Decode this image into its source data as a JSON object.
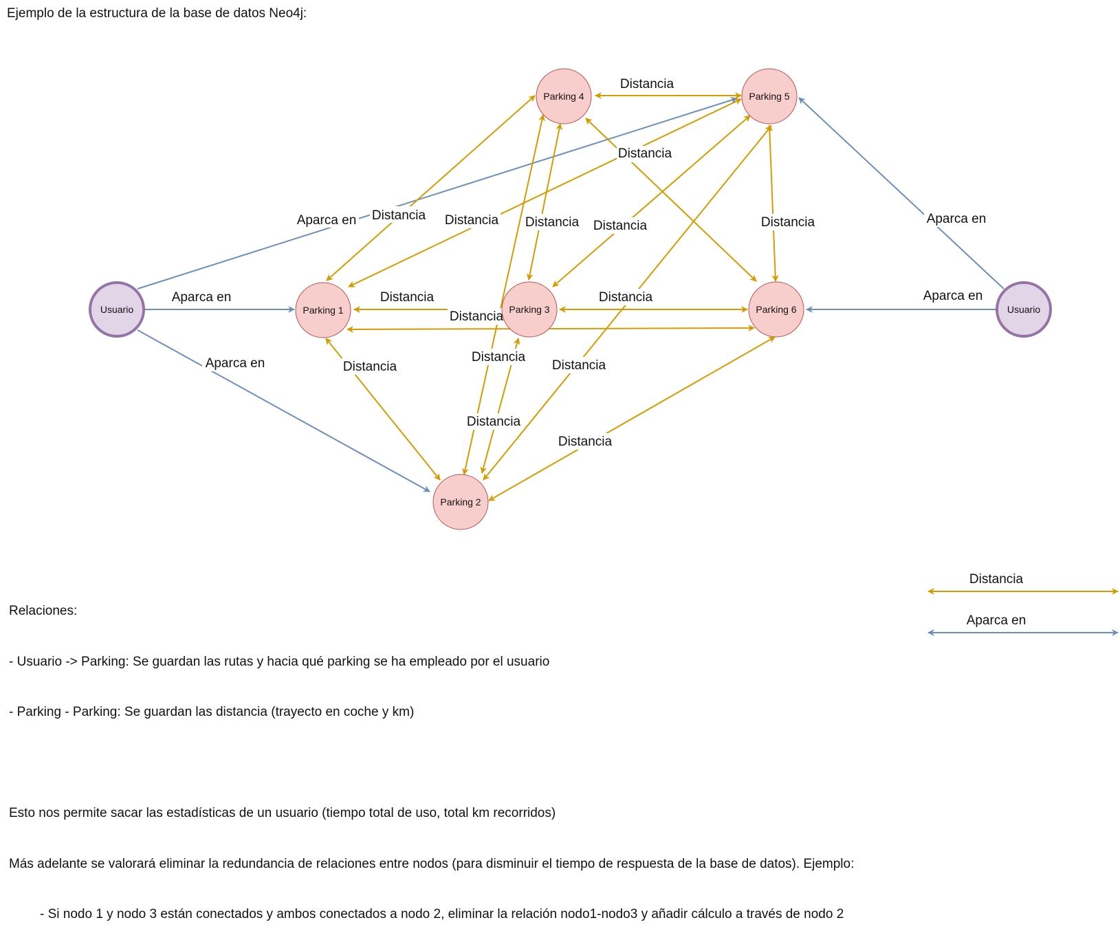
{
  "heading": "Ejemplo de la estructura de la base de datos Neo4j:",
  "colors": {
    "distance_edge": "#d79b00",
    "parks_edge": "#6c8ebf",
    "parking_fill": "#f8cecc",
    "parking_stroke": "#b85450",
    "user_fill": "#e1d5e7",
    "user_stroke": "#9673a6"
  },
  "nodes": {
    "user_left": "Usuario",
    "user_right": "Usuario",
    "p1": "Parking 1",
    "p2": "Parking 2",
    "p3": "Parking 3",
    "p4": "Parking 4",
    "p5": "Parking 5",
    "p6": "Parking 6"
  },
  "edge_labels": {
    "parks_in": "Aparca en",
    "distance": "Distancia"
  },
  "legend": {
    "distance": "Distancia",
    "parks_in": "Aparca en"
  },
  "notes": {
    "line1": "Relaciones:",
    "line2": "- Usuario -> Parking: Se guardan las rutas y hacia qué parking se ha empleado por el usuario",
    "line3": "- Parking - Parking: Se guardan las distancia (trayecto en coche y km)",
    "line4": "Esto nos permite sacar las estadísticas de un usuario (tiempo total de uso, total km recorridos)",
    "line5": "Más adelante se valorará eliminar la redundancia de relaciones entre nodos (para disminuir el tiempo de respuesta de la base de datos). Ejemplo:",
    "line6": "- Si nodo 1 y nodo 3 están conectados y ambos conectados a nodo 2, eliminar la relación nodo1-nodo3 y añadir cálculo a través de nodo 2"
  }
}
